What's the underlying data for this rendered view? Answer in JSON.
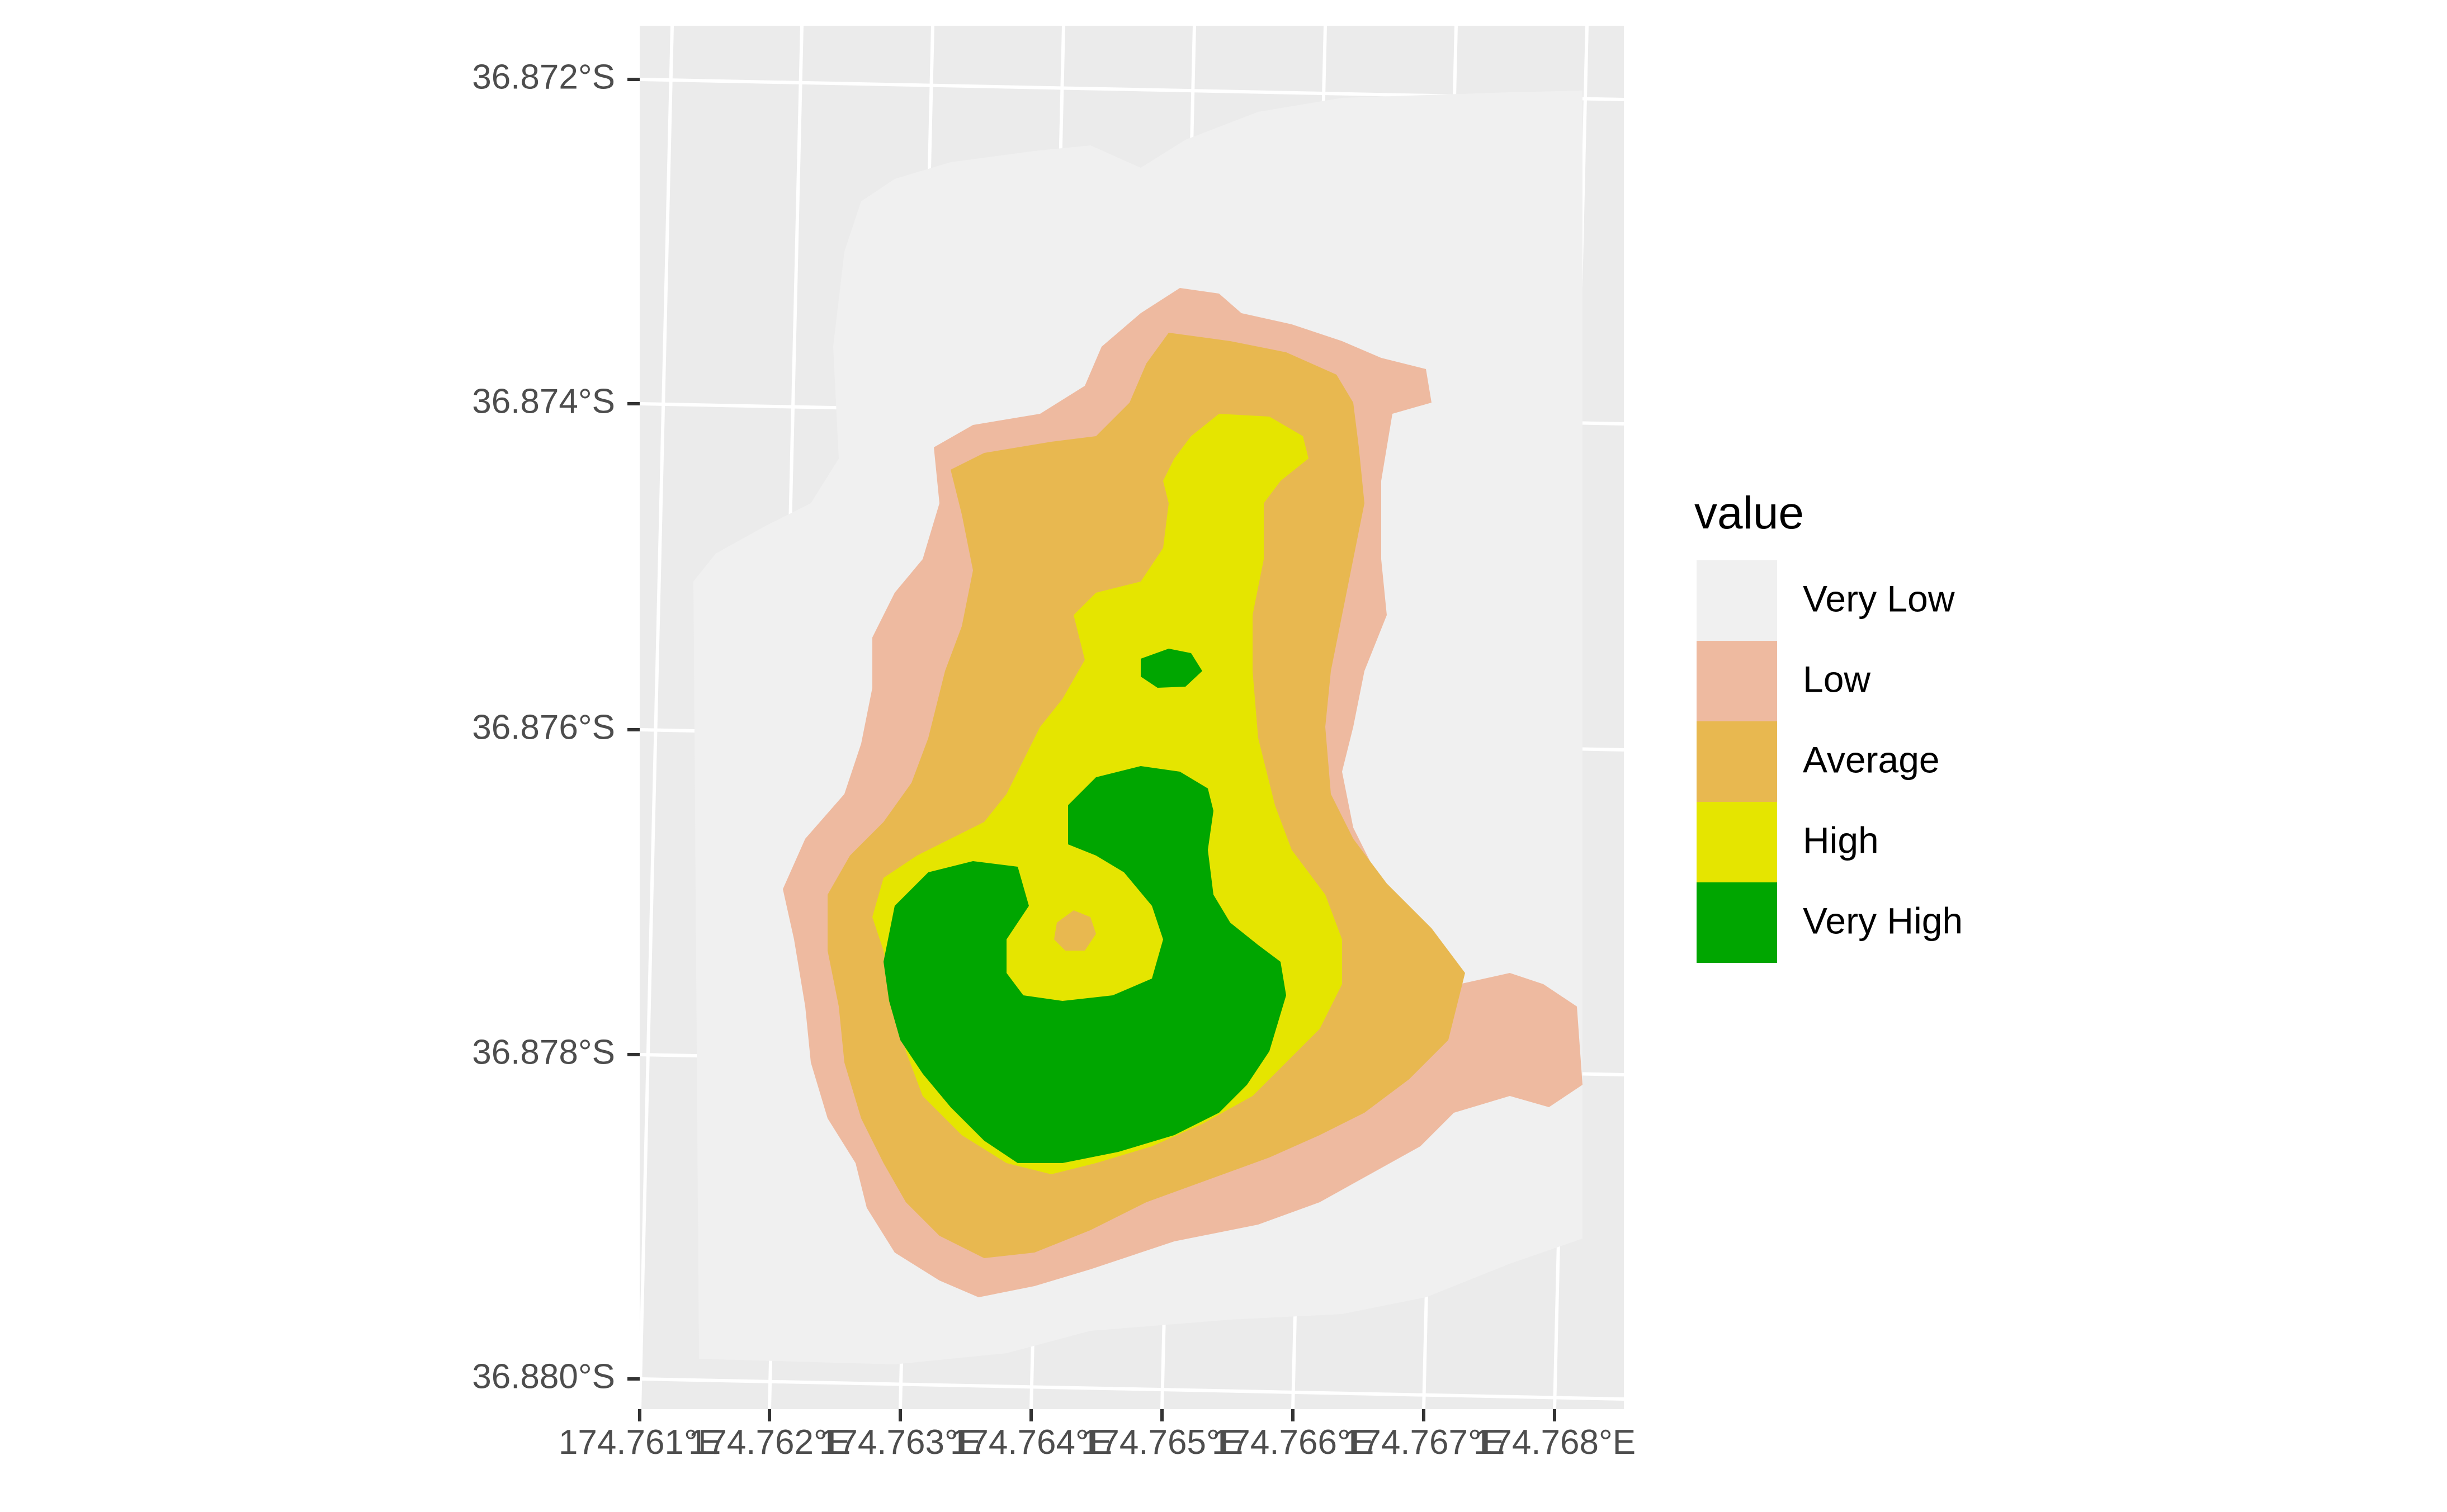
{
  "chart_data": {
    "type": "heatmap",
    "title": "",
    "xlabel": "",
    "ylabel": "",
    "x_ticks": [
      "174.761°E",
      "174.762°E",
      "174.763°E",
      "174.764°E",
      "174.765°E",
      "174.766°E",
      "174.767°E",
      "174.768°E"
    ],
    "y_ticks": [
      "36.872°S",
      "36.874°S",
      "36.876°S",
      "36.878°S",
      "36.880°S"
    ],
    "xlim": [
      174.761,
      174.7675
    ],
    "ylim": [
      -36.88,
      -36.8718
    ],
    "grid": true,
    "legend": {
      "title": "value",
      "position": "right",
      "entries": [
        {
          "label": "Very Low",
          "color": "#f0f0f0"
        },
        {
          "label": "Low",
          "color": "#eebaa0"
        },
        {
          "label": "Average",
          "color": "#e8b850"
        },
        {
          "label": "High",
          "color": "#e5e500"
        },
        {
          "label": "Very High",
          "color": "#00a600"
        }
      ]
    },
    "panel_background": "#ebebeb",
    "gridline_color": "#ffffff"
  }
}
